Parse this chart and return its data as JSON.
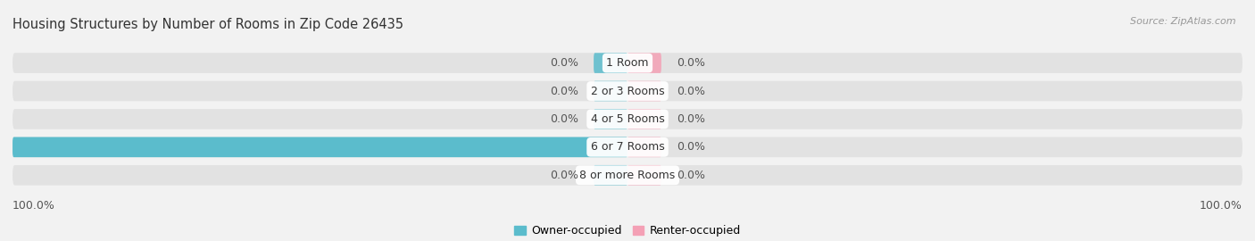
{
  "title": "Housing Structures by Number of Rooms in Zip Code 26435",
  "source": "Source: ZipAtlas.com",
  "categories": [
    "1 Room",
    "2 or 3 Rooms",
    "4 or 5 Rooms",
    "6 or 7 Rooms",
    "8 or more Rooms"
  ],
  "owner_values": [
    0.0,
    0.0,
    0.0,
    100.0,
    0.0
  ],
  "renter_values": [
    0.0,
    0.0,
    0.0,
    0.0,
    0.0
  ],
  "owner_color": "#5bbccc",
  "renter_color": "#f4a0b5",
  "bg_color": "#f2f2f2",
  "bar_bg_color": "#e2e2e2",
  "bar_height": 0.72,
  "xlim": [
    -100,
    100
  ],
  "label_fontsize": 9,
  "title_fontsize": 10.5,
  "source_fontsize": 8,
  "axis_label_fontsize": 9,
  "owner_label": "Owner-occupied",
  "renter_label": "Renter-occupied",
  "left_axis_label": "100.0%",
  "right_axis_label": "100.0%",
  "min_bar_display": 4
}
